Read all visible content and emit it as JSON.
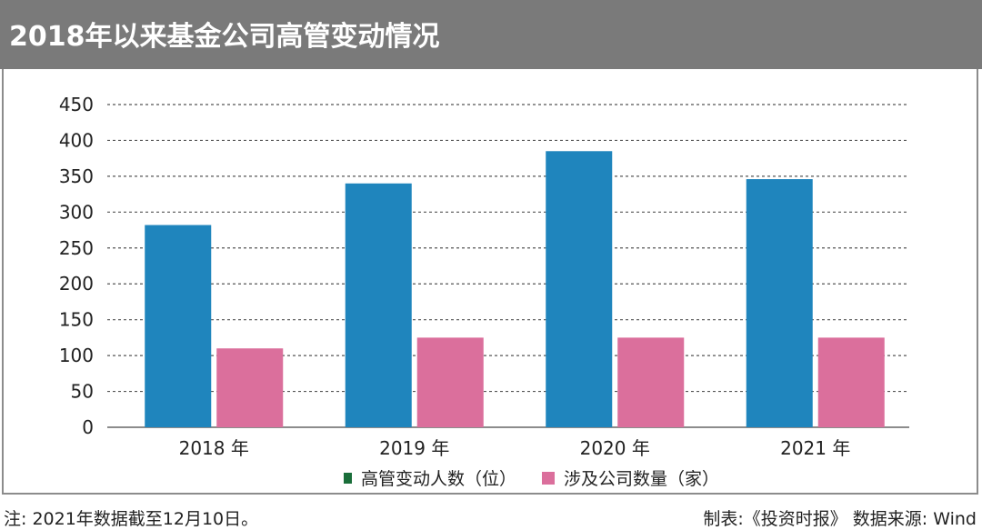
{
  "header": {
    "title": "2018年以来基金公司高管变动情况"
  },
  "chart_data": {
    "type": "bar",
    "categories": [
      "2018 年",
      "2019 年",
      "2020 年",
      "2021 年"
    ],
    "series": [
      {
        "name": "高管变动人数（位）",
        "values": [
          282,
          340,
          385,
          346
        ],
        "color": "#1f85bd",
        "legend_color": "#1a6e3a"
      },
      {
        "name": "涉及公司数量（家）",
        "values": [
          110,
          125,
          125,
          125
        ],
        "color": "#db6f9c",
        "legend_color": "#db6f9c"
      }
    ],
    "ylim": [
      0,
      450
    ],
    "yticks": [
      0,
      50,
      100,
      150,
      200,
      250,
      300,
      350,
      400,
      450
    ],
    "grid": true,
    "legend": "bottom-center"
  },
  "footer": {
    "note": "注: 2021年数据截至12月10日。",
    "source": "制表:《投资时报》 数据来源: Wind"
  }
}
